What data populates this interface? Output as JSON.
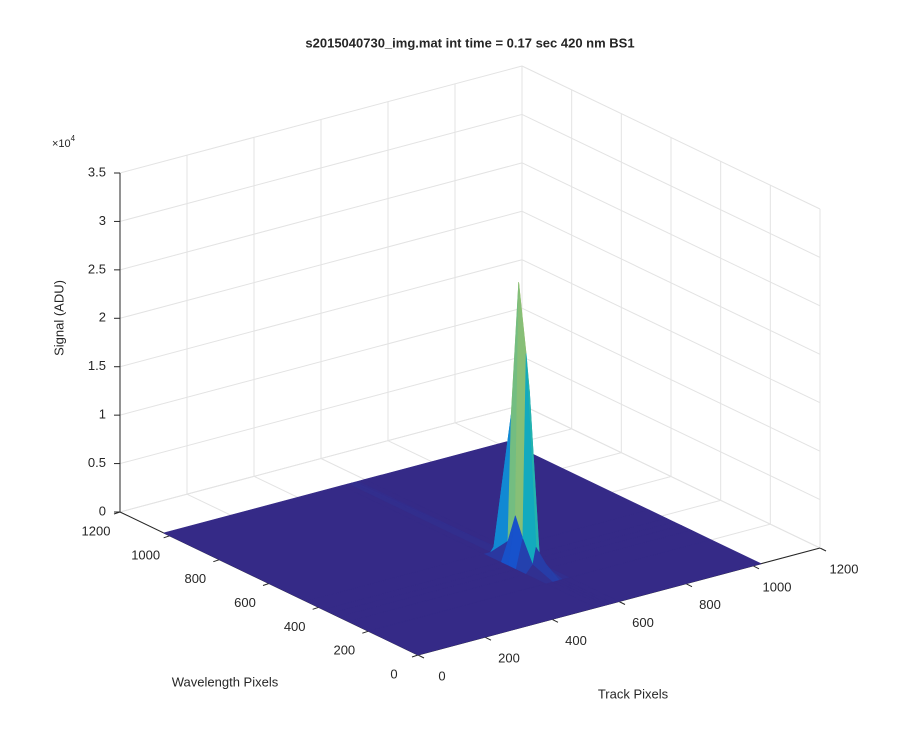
{
  "chart_data": {
    "type": "surface",
    "title": "s2015040730_img.mat int time = 0.17 sec  420 nm BS1",
    "xlabel": "Track Pixels",
    "ylabel": "Wavelength Pixels",
    "zlabel": "Signal (ADU)",
    "z_exponent": {
      "base": "×10",
      "power": "4"
    },
    "x": [
      0,
      530,
      550,
      560,
      570,
      580,
      600,
      1024
    ],
    "y": [
      0,
      200,
      280,
      320,
      350,
      380,
      450,
      1024
    ],
    "z": [
      [
        0,
        0,
        0,
        0,
        0,
        0,
        0,
        0
      ],
      [
        0,
        0,
        0,
        0,
        0,
        0,
        0,
        0
      ],
      [
        0,
        0,
        800,
        2500,
        1500,
        600,
        0,
        0
      ],
      [
        0,
        0,
        3000,
        22000,
        18000,
        2000,
        0,
        0
      ],
      [
        0,
        0,
        5000,
        29000,
        25000,
        4000,
        0,
        0
      ],
      [
        0,
        0,
        2000,
        15000,
        12000,
        1500,
        0,
        0
      ],
      [
        0,
        0,
        0,
        500,
        300,
        0,
        0,
        0
      ],
      [
        0,
        0,
        0,
        0,
        0,
        0,
        0,
        0
      ]
    ],
    "xlim": [
      0,
      1200
    ],
    "ylim": [
      0,
      1200
    ],
    "zlim": [
      0,
      35000
    ],
    "xticks": [
      0,
      200,
      400,
      600,
      800,
      1000,
      1200
    ],
    "yticks": [
      0,
      200,
      400,
      600,
      800,
      1000,
      1200
    ],
    "zticks": [
      0,
      {
        "value": 5000,
        "label": "0.5"
      },
      {
        "value": 10000,
        "label": "1"
      },
      {
        "value": 15000,
        "label": "1.5"
      },
      {
        "value": 20000,
        "label": "2"
      },
      {
        "value": 25000,
        "label": "2.5"
      },
      {
        "value": 30000,
        "label": "3"
      },
      {
        "value": 35000,
        "label": "3.5"
      }
    ],
    "grid": true,
    "colormap": [
      "#352a87",
      "#0f5cdd",
      "#1481d6",
      "#06a4ca",
      "#2eb7a4",
      "#87bf77",
      "#d1bb59",
      "#fec832",
      "#f9fb0e"
    ]
  }
}
